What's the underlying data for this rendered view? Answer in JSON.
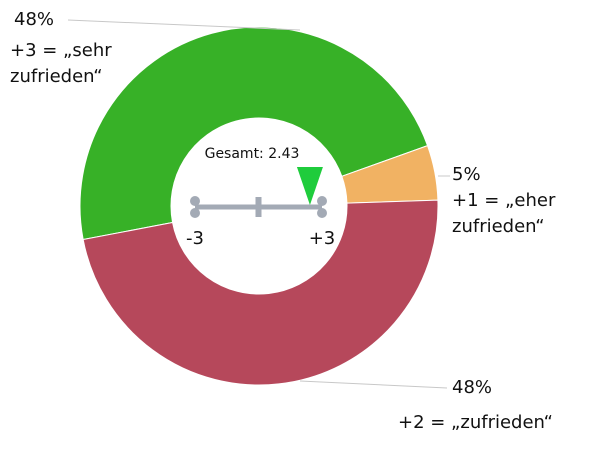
{
  "chart_data": {
    "type": "donut",
    "categories": [
      "+3 = „sehr zufrieden“",
      "+1 = „eher zufrieden“",
      "+2 = „zufrieden“"
    ],
    "values": [
      48,
      5,
      48
    ],
    "value_labels": [
      "48%",
      "5%",
      "48%"
    ],
    "colors": [
      "#37b127",
      "#f1b263",
      "#b6485b"
    ],
    "gauge": {
      "label": "Gesamt: 2.43",
      "value": 2.43,
      "range": [
        -3,
        3
      ],
      "ticks": [
        -3,
        {
          "value": 3,
          "label": "+3"
        }
      ],
      "color": "#1fcc3c"
    }
  }
}
